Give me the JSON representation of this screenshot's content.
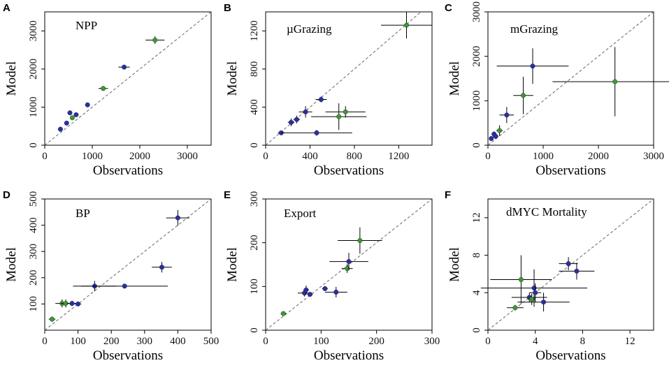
{
  "colors": {
    "blue": "#2b2f9e",
    "green": "#3c9a2a",
    "axis": "#000000",
    "diagonal": "#666666"
  },
  "chart_data": [
    {
      "type": "scatter",
      "label": "A",
      "title": "NPP",
      "xlabel": "Observations",
      "ylabel": "Model",
      "xlim": [
        0,
        3500
      ],
      "ylim": [
        0,
        3500
      ],
      "xticks": [
        0,
        1000,
        2000,
        3000
      ],
      "yticks": [
        0,
        1000,
        2000,
        3000
      ],
      "points": [
        {
          "x": 330,
          "y": 420,
          "xerr": 0,
          "yerr": 0,
          "c": "blue"
        },
        {
          "x": 460,
          "y": 580,
          "xerr": 0,
          "yerr": 0,
          "c": "blue"
        },
        {
          "x": 530,
          "y": 850,
          "xerr": 0,
          "yerr": 0,
          "c": "blue"
        },
        {
          "x": 580,
          "y": 720,
          "xerr": 40,
          "yerr": 40,
          "c": "green"
        },
        {
          "x": 660,
          "y": 800,
          "xerr": 0,
          "yerr": 0,
          "c": "blue"
        },
        {
          "x": 900,
          "y": 1060,
          "xerr": 0,
          "yerr": 0,
          "c": "blue"
        },
        {
          "x": 1230,
          "y": 1490,
          "xerr": 100,
          "yerr": 40,
          "c": "green"
        },
        {
          "x": 1670,
          "y": 2050,
          "xerr": 120,
          "yerr": 60,
          "c": "blue"
        },
        {
          "x": 2320,
          "y": 2760,
          "xerr": 200,
          "yerr": 100,
          "c": "green"
        }
      ]
    },
    {
      "type": "scatter",
      "label": "B",
      "title": "µGrazing",
      "xlabel": "Observations",
      "ylabel": "Model",
      "xlim": [
        0,
        1500
      ],
      "ylim": [
        0,
        1400
      ],
      "xticks": [
        0,
        400,
        800,
        1200
      ],
      "yticks": [
        0,
        400,
        800,
        1200
      ],
      "points": [
        {
          "x": 140,
          "y": 130,
          "xerr": 30,
          "yerr": 20,
          "c": "blue"
        },
        {
          "x": 230,
          "y": 240,
          "xerr": 30,
          "yerr": 40,
          "c": "blue"
        },
        {
          "x": 280,
          "y": 270,
          "xerr": 30,
          "yerr": 40,
          "c": "blue"
        },
        {
          "x": 360,
          "y": 350,
          "xerr": 60,
          "yerr": 60,
          "c": "blue"
        },
        {
          "x": 500,
          "y": 480,
          "xerr": 50,
          "yerr": 30,
          "c": "blue"
        },
        {
          "x": 460,
          "y": 130,
          "xerr": 320,
          "yerr": 30,
          "c": "blue"
        },
        {
          "x": 660,
          "y": 300,
          "xerr": 250,
          "yerr": 140,
          "c": "green"
        },
        {
          "x": 720,
          "y": 350,
          "xerr": 180,
          "yerr": 60,
          "c": "green"
        },
        {
          "x": 1270,
          "y": 1260,
          "xerr": 230,
          "yerr": 140,
          "c": "green"
        }
      ]
    },
    {
      "type": "scatter",
      "label": "C",
      "title": "mGrazing",
      "xlabel": "Observations",
      "ylabel": "Model",
      "xlim": [
        0,
        3000
      ],
      "ylim": [
        0,
        3000
      ],
      "xticks": [
        0,
        1000,
        2000,
        3000
      ],
      "yticks": [
        0,
        1000,
        2000,
        3000
      ],
      "points": [
        {
          "x": 60,
          "y": 150,
          "xerr": 30,
          "yerr": 50,
          "c": "blue"
        },
        {
          "x": 110,
          "y": 250,
          "xerr": 40,
          "yerr": 60,
          "c": "blue"
        },
        {
          "x": 140,
          "y": 200,
          "xerr": 50,
          "yerr": 60,
          "c": "blue"
        },
        {
          "x": 210,
          "y": 330,
          "xerr": 60,
          "yerr": 120,
          "c": "green"
        },
        {
          "x": 340,
          "y": 680,
          "xerr": 130,
          "yerr": 180,
          "c": "blue"
        },
        {
          "x": 640,
          "y": 1120,
          "xerr": 180,
          "yerr": 420,
          "c": "green"
        },
        {
          "x": 810,
          "y": 1780,
          "xerr": 650,
          "yerr": 400,
          "c": "blue"
        },
        {
          "x": 2300,
          "y": 1430,
          "xerr": 1130,
          "yerr": 780,
          "c": "green"
        }
      ]
    },
    {
      "type": "scatter",
      "label": "D",
      "title": "BP",
      "xlabel": "Observations",
      "ylabel": "Model",
      "xlim": [
        0,
        500
      ],
      "ylim": [
        0,
        500
      ],
      "xticks": [
        0,
        100,
        200,
        300,
        400,
        500
      ],
      "yticks": [
        100,
        200,
        300,
        400,
        500
      ],
      "xticklabels": [
        "0",
        "100",
        "200",
        "300",
        "400",
        "500"
      ],
      "yticklabels": [
        "100",
        "200",
        "300",
        "400",
        "500"
      ],
      "points": [
        {
          "x": 22,
          "y": 42,
          "xerr": 10,
          "yerr": 10,
          "c": "green"
        },
        {
          "x": 52,
          "y": 102,
          "xerr": 20,
          "yerr": 15,
          "c": "green"
        },
        {
          "x": 63,
          "y": 102,
          "xerr": 15,
          "yerr": 15,
          "c": "green"
        },
        {
          "x": 82,
          "y": 102,
          "xerr": 15,
          "yerr": 10,
          "c": "blue"
        },
        {
          "x": 100,
          "y": 100,
          "xerr": 10,
          "yerr": 5,
          "c": "blue"
        },
        {
          "x": 150,
          "y": 168,
          "xerr": 65,
          "yerr": 20,
          "c": "blue"
        },
        {
          "x": 240,
          "y": 168,
          "xerr": 130,
          "yerr": 0,
          "c": "blue"
        },
        {
          "x": 352,
          "y": 240,
          "xerr": 30,
          "yerr": 20,
          "c": "blue"
        },
        {
          "x": 400,
          "y": 428,
          "xerr": 35,
          "yerr": 30,
          "c": "blue"
        }
      ]
    },
    {
      "type": "scatter",
      "label": "E",
      "title": "Export",
      "xlabel": "Observations",
      "ylabel": "Model",
      "xlim": [
        0,
        300
      ],
      "ylim": [
        0,
        300
      ],
      "xticks": [
        0,
        100,
        200,
        300
      ],
      "yticks": [
        0,
        100,
        200,
        300
      ],
      "points": [
        {
          "x": 32,
          "y": 38,
          "xerr": 5,
          "yerr": 5,
          "c": "green"
        },
        {
          "x": 70,
          "y": 85,
          "xerr": 12,
          "yerr": 8,
          "c": "blue"
        },
        {
          "x": 73,
          "y": 92,
          "xerr": 5,
          "yerr": 10,
          "c": "blue"
        },
        {
          "x": 80,
          "y": 82,
          "xerr": 5,
          "yerr": 5,
          "c": "blue"
        },
        {
          "x": 107,
          "y": 95,
          "xerr": 5,
          "yerr": 5,
          "c": "blue"
        },
        {
          "x": 127,
          "y": 87,
          "xerr": 20,
          "yerr": 12,
          "c": "blue"
        },
        {
          "x": 147,
          "y": 141,
          "xerr": 10,
          "yerr": 10,
          "c": "green"
        },
        {
          "x": 150,
          "y": 157,
          "xerr": 35,
          "yerr": 20,
          "c": "blue"
        },
        {
          "x": 170,
          "y": 205,
          "xerr": 40,
          "yerr": 30,
          "c": "green"
        }
      ]
    },
    {
      "type": "scatter",
      "label": "F",
      "title": "dMYC Mortality",
      "xlabel": "Observations",
      "ylabel": "Model",
      "xlim": [
        0,
        14
      ],
      "ylim": [
        0,
        14
      ],
      "xticks": [
        0,
        4,
        8,
        12
      ],
      "yticks": [
        0,
        4,
        8,
        12
      ],
      "points": [
        {
          "x": 2.3,
          "y": 2.4,
          "xerr": 0.7,
          "yerr": 0.3,
          "c": "green"
        },
        {
          "x": 2.8,
          "y": 5.4,
          "xerr": 2.6,
          "yerr": 2.6,
          "c": "green"
        },
        {
          "x": 3.5,
          "y": 3.5,
          "xerr": 1.5,
          "yerr": 0.5,
          "c": "blue"
        },
        {
          "x": 3.7,
          "y": 3.3,
          "xerr": 0.3,
          "yerr": 0.6,
          "c": "green"
        },
        {
          "x": 3.9,
          "y": 4.5,
          "xerr": 4.5,
          "yerr": 2.0,
          "c": "blue"
        },
        {
          "x": 4.0,
          "y": 4.0,
          "xerr": 0.5,
          "yerr": 1.0,
          "c": "blue"
        },
        {
          "x": 4.7,
          "y": 3.0,
          "xerr": 2.2,
          "yerr": 1.0,
          "c": "blue"
        },
        {
          "x": 6.8,
          "y": 7.1,
          "xerr": 0.8,
          "yerr": 0.7,
          "c": "blue"
        },
        {
          "x": 7.5,
          "y": 6.3,
          "xerr": 1.5,
          "yerr": 0.9,
          "c": "blue"
        }
      ]
    }
  ]
}
